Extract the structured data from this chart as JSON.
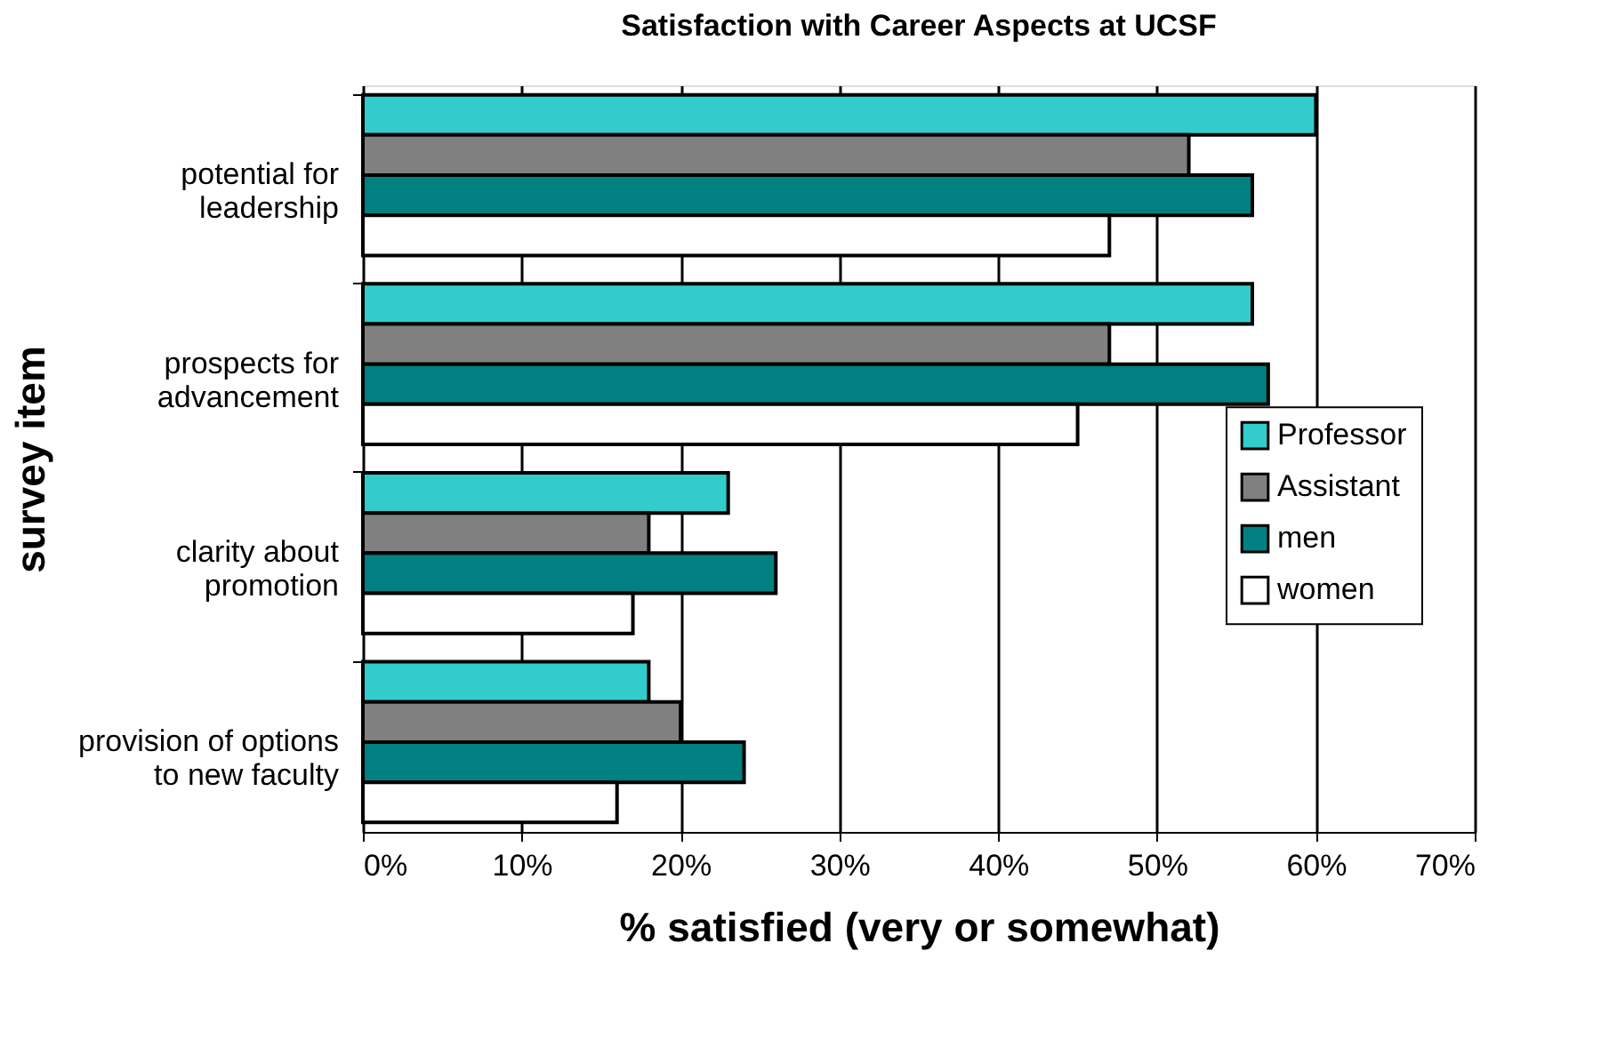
{
  "chart_data": {
    "type": "bar",
    "orientation": "horizontal",
    "title": "Satisfaction with Career Aspects at UCSF",
    "xlabel": "% satisfied (very or somewhat)",
    "ylabel": "survey item",
    "categories": [
      "potential for leadership",
      "prospects for advancement",
      "clarity about promotion",
      "provision of options to new faculty"
    ],
    "series": [
      {
        "name": "Professor",
        "color": "#33cccc",
        "values": [
          60,
          56,
          23,
          18
        ]
      },
      {
        "name": "Assistant",
        "color": "#808080",
        "values": [
          52,
          47,
          18,
          20
        ]
      },
      {
        "name": "men",
        "color": "#008080",
        "values": [
          56,
          57,
          26,
          24
        ]
      },
      {
        "name": "women",
        "color": "#ffffff",
        "values": [
          47,
          45,
          17,
          16
        ]
      }
    ],
    "xlim": [
      0,
      70
    ],
    "xticks": [
      {
        "value": 0,
        "label": "0%"
      },
      {
        "value": 10,
        "label": "10%"
      },
      {
        "value": 20,
        "label": "20%"
      },
      {
        "value": 30,
        "label": "30%"
      },
      {
        "value": 40,
        "label": "40%"
      },
      {
        "value": 50,
        "label": "50%"
      },
      {
        "value": 60,
        "label": "60%"
      },
      {
        "value": 70,
        "label": "70%"
      }
    ],
    "grid": "x",
    "legend": "right"
  }
}
